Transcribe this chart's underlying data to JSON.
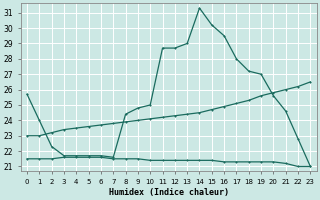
{
  "xlabel": "Humidex (Indice chaleur)",
  "bg_color": "#cce8e4",
  "grid_color": "#ffffff",
  "line_color": "#1a6b5e",
  "xlim": [
    -0.5,
    23.5
  ],
  "ylim": [
    20.7,
    31.6
  ],
  "yticks": [
    21,
    22,
    23,
    24,
    25,
    26,
    27,
    28,
    29,
    30,
    31
  ],
  "xticks": [
    0,
    1,
    2,
    3,
    4,
    5,
    6,
    7,
    8,
    9,
    10,
    11,
    12,
    13,
    14,
    15,
    16,
    17,
    18,
    19,
    20,
    21,
    22,
    23
  ],
  "line1_x": [
    0,
    1,
    2,
    3,
    4,
    5,
    6,
    7,
    8,
    9,
    10,
    11,
    12,
    13,
    14,
    15,
    16,
    17,
    18,
    19,
    20,
    21,
    22,
    23
  ],
  "line1_y": [
    25.7,
    24.0,
    22.3,
    21.7,
    21.7,
    21.7,
    21.7,
    21.6,
    24.4,
    24.8,
    25.0,
    28.7,
    28.7,
    29.0,
    31.3,
    30.2,
    29.5,
    28.0,
    27.2,
    27.0,
    25.6,
    24.6,
    22.8,
    21.0
  ],
  "line2_x": [
    0,
    1,
    2,
    3,
    4,
    5,
    6,
    7,
    8,
    9,
    10,
    11,
    12,
    13,
    14,
    15,
    16,
    17,
    18,
    19,
    20,
    21,
    22,
    23
  ],
  "line2_y": [
    23.0,
    23.0,
    23.2,
    23.4,
    23.5,
    23.6,
    23.7,
    23.8,
    23.9,
    24.0,
    24.1,
    24.2,
    24.3,
    24.4,
    24.5,
    24.7,
    24.9,
    25.1,
    25.3,
    25.6,
    25.8,
    26.0,
    26.2,
    26.5
  ],
  "line3_x": [
    0,
    1,
    2,
    3,
    4,
    5,
    6,
    7,
    8,
    9,
    10,
    11,
    12,
    13,
    14,
    15,
    16,
    17,
    18,
    19,
    20,
    21,
    22,
    23
  ],
  "line3_y": [
    21.5,
    21.5,
    21.5,
    21.6,
    21.6,
    21.6,
    21.6,
    21.5,
    21.5,
    21.5,
    21.4,
    21.4,
    21.4,
    21.4,
    21.4,
    21.4,
    21.3,
    21.3,
    21.3,
    21.3,
    21.3,
    21.2,
    21.0,
    21.0
  ]
}
